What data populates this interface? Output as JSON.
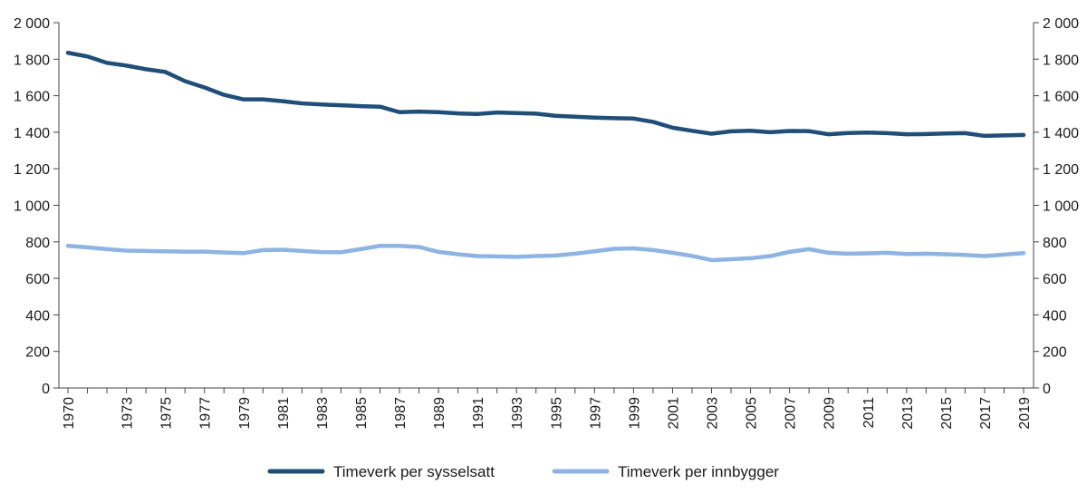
{
  "chart_data": {
    "type": "line",
    "title": "",
    "xlabel": "",
    "ylabel": "",
    "ylim": [
      0,
      2000
    ],
    "yticks": [
      0,
      200,
      400,
      600,
      800,
      1000,
      1200,
      1400,
      1600,
      1800,
      2000
    ],
    "ytick_labels": [
      "0",
      "200",
      "400",
      "600",
      "800",
      "1 000",
      "1 200",
      "1 400",
      "1 600",
      "1 800",
      "2 000"
    ],
    "secondary_y_axis": true,
    "xlim": [
      1970,
      2019
    ],
    "xtick_labels": [
      "1970",
      "1973",
      "1975",
      "1977",
      "1979",
      "1981",
      "1983",
      "1985",
      "1987",
      "1989",
      "1991",
      "1993",
      "1995",
      "1997",
      "1999",
      "2001",
      "2003",
      "2005",
      "2007",
      "2009",
      "2011",
      "2013",
      "2015",
      "2017",
      "2019"
    ],
    "grid": false,
    "legend_position": "bottom",
    "x": [
      1970,
      1971,
      1972,
      1973,
      1974,
      1975,
      1976,
      1977,
      1978,
      1979,
      1980,
      1981,
      1982,
      1983,
      1984,
      1985,
      1986,
      1987,
      1988,
      1989,
      1990,
      1991,
      1992,
      1993,
      1994,
      1995,
      1996,
      1997,
      1998,
      1999,
      2000,
      2001,
      2002,
      2003,
      2004,
      2005,
      2006,
      2007,
      2008,
      2009,
      2010,
      2011,
      2012,
      2013,
      2014,
      2015,
      2016,
      2017,
      2018,
      2019
    ],
    "series": [
      {
        "name": "Timeverk per sysselsatt",
        "color": "#1f4e79",
        "values": [
          1835,
          1815,
          1780,
          1765,
          1745,
          1730,
          1680,
          1645,
          1605,
          1580,
          1580,
          1570,
          1558,
          1552,
          1548,
          1543,
          1540,
          1510,
          1513,
          1510,
          1503,
          1500,
          1508,
          1505,
          1502,
          1490,
          1485,
          1480,
          1477,
          1475,
          1457,
          1425,
          1408,
          1392,
          1405,
          1408,
          1400,
          1407,
          1406,
          1389,
          1396,
          1398,
          1395,
          1389,
          1390,
          1393,
          1395,
          1380,
          1383,
          1385
        ]
      },
      {
        "name": "Timeverk per innbygger",
        "color": "#8eb4e3",
        "values": [
          778,
          770,
          760,
          752,
          750,
          748,
          746,
          746,
          742,
          738,
          755,
          757,
          750,
          744,
          743,
          760,
          778,
          778,
          772,
          745,
          732,
          722,
          720,
          718,
          722,
          725,
          735,
          748,
          762,
          764,
          755,
          740,
          723,
          700,
          705,
          710,
          722,
          745,
          760,
          740,
          735,
          737,
          740,
          733,
          735,
          732,
          728,
          722,
          730,
          738
        ]
      }
    ]
  }
}
